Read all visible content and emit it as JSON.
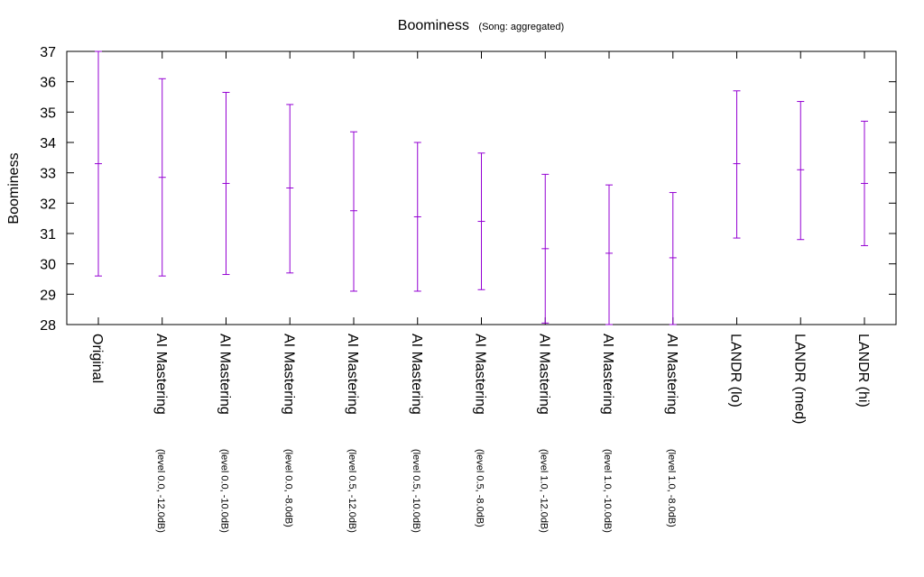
{
  "chart_data": {
    "type": "errorbar",
    "title": "Boominess",
    "subtitle": "(Song: aggregated)",
    "ylabel": "Boominess",
    "xlabel": "",
    "ylim": [
      28,
      37
    ],
    "yticks": [
      28,
      29,
      30,
      31,
      32,
      33,
      34,
      35,
      36,
      37
    ],
    "grid": false,
    "legend": "none",
    "color": "#9400d3",
    "categories": [
      {
        "label": "Original",
        "sub": ""
      },
      {
        "label": "AI Mastering",
        "sub": "(level 0.0, -12.0dB)"
      },
      {
        "label": "AI Mastering",
        "sub": "(level 0.0, -10.0dB)"
      },
      {
        "label": "AI Mastering",
        "sub": "(level 0.0, -8.0dB)"
      },
      {
        "label": "AI Mastering",
        "sub": "(level 0.5, -12.0dB)"
      },
      {
        "label": "AI Mastering",
        "sub": "(level 0.5, -10.0dB)"
      },
      {
        "label": "AI Mastering",
        "sub": "(level 0.5, -8.0dB)"
      },
      {
        "label": "AI Mastering",
        "sub": "(level 1.0, -12.0dB)"
      },
      {
        "label": "AI Mastering",
        "sub": "(level 1.0, -10.0dB)"
      },
      {
        "label": "AI Mastering",
        "sub": "(level 1.0, -8.0dB)"
      },
      {
        "label": "LANDR (lo)",
        "sub": ""
      },
      {
        "label": "LANDR (med)",
        "sub": ""
      },
      {
        "label": "LANDR (hi)",
        "sub": ""
      }
    ],
    "values": [
      {
        "low": 29.6,
        "mid": 33.3,
        "high": 37.0
      },
      {
        "low": 29.6,
        "mid": 32.85,
        "high": 36.1
      },
      {
        "low": 29.65,
        "mid": 32.65,
        "high": 35.65
      },
      {
        "low": 29.7,
        "mid": 32.5,
        "high": 35.25
      },
      {
        "low": 29.1,
        "mid": 31.75,
        "high": 34.35
      },
      {
        "low": 29.1,
        "mid": 31.55,
        "high": 34.0
      },
      {
        "low": 29.15,
        "mid": 31.4,
        "high": 33.65
      },
      {
        "low": 28.05,
        "mid": 30.5,
        "high": 32.95
      },
      {
        "low": 28.0,
        "mid": 30.35,
        "high": 32.6
      },
      {
        "low": 28.0,
        "mid": 30.2,
        "high": 32.35
      },
      {
        "low": 30.85,
        "mid": 33.3,
        "high": 35.7
      },
      {
        "low": 30.8,
        "mid": 33.1,
        "high": 35.35
      },
      {
        "low": 30.6,
        "mid": 32.65,
        "high": 34.7
      }
    ]
  }
}
